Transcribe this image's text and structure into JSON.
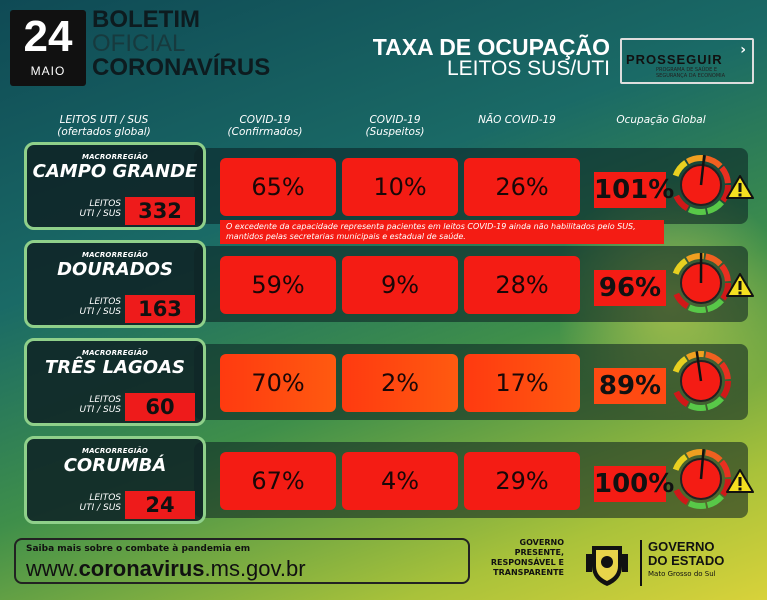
{
  "header": {
    "day": "24",
    "month": "MAIO",
    "bulletin_line1": "BOLETIM",
    "bulletin_line2": "OFICIAL",
    "bulletin_line3": "CORONAVÍRUS",
    "title": "TAXA DE OCUPAÇÃO",
    "subtitle": "LEITOS SUS/UTI",
    "program_logo": "PROSSEGUIR",
    "program_logo_sub": "PROGRAMA DE SAÚDE E SEGURANÇA DA ECONOMIA"
  },
  "columns": {
    "beds": "LEITOS UTI / SUS (ofertados global)",
    "covid_confirmed": "COVID-19 (Confirmados)",
    "covid_suspected": "COVID-19 (Suspeitos)",
    "non_covid": "NÃO COVID-19",
    "global": "Ocupação Global"
  },
  "region_label": "MACRORREGIÃO",
  "beds_label": "LEITOS UTI / SUS",
  "regions": [
    {
      "name": "CAMPO GRANDE",
      "beds": "332",
      "confirmed": "65%",
      "suspected": "10%",
      "non_covid": "26%",
      "global": "101%",
      "global_value": 101,
      "warning": true
    },
    {
      "name": "DOURADOS",
      "beds": "163",
      "confirmed": "59%",
      "suspected": "9%",
      "non_covid": "28%",
      "global": "96%",
      "global_value": 96,
      "warning": true
    },
    {
      "name": "TRÊS LAGOAS",
      "beds": "60",
      "confirmed": "70%",
      "suspected": "2%",
      "non_covid": "17%",
      "global": "89%",
      "global_value": 89,
      "warning": false
    },
    {
      "name": "CORUMBÁ",
      "beds": "24",
      "confirmed": "67%",
      "suspected": "4%",
      "non_covid": "29%",
      "global": "100%",
      "global_value": 100,
      "warning": true
    }
  ],
  "note": "O excedente da capacidade representa pacientes em leitos COVID-19 ainda não habilitados pelo SUS, mantidos pelas secretarias municipais e estadual de saúde.",
  "footer": {
    "info": "Saiba mais sobre o combate à pandemia em",
    "url_prefix": "www.",
    "url_bold": "coronavirus",
    "url_suffix": ".ms.gov.br",
    "motto": "GOVERNO PRESENTE, RESPONSÁVEL E TRANSPARENTE",
    "gov_line1": "GOVERNO",
    "gov_line2": "DO ESTADO",
    "gov_line3": "Mato Grosso do Sul"
  },
  "colors": {
    "red": "#f41c14",
    "green_border": "#8fd08a",
    "dark": "#111111"
  }
}
